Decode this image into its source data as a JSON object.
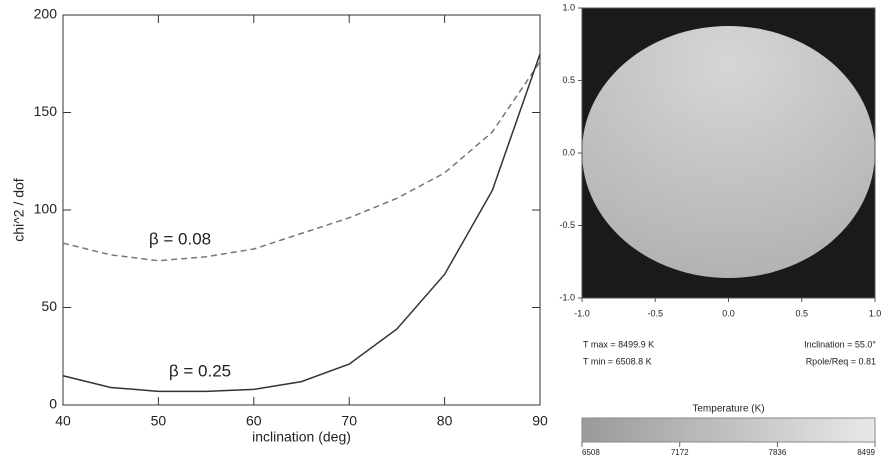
{
  "chart_data": [
    {
      "type": "line",
      "x": [
        40,
        45,
        50,
        55,
        60,
        65,
        70,
        75,
        80,
        85,
        90
      ],
      "series": [
        {
          "color": "#777777",
          "dashed": true,
          "values": [
            83,
            77,
            74,
            76,
            80,
            88,
            96,
            106,
            119,
            140,
            176
          ]
        },
        {
          "color": "#333333",
          "dashed": false,
          "values": [
            15,
            9,
            7,
            7,
            8,
            12,
            21,
            39,
            67,
            110,
            180
          ]
        }
      ],
      "annotations": [
        "β = 0.08",
        "β = 0.25"
      ],
      "xlabel": "inclination (deg)",
      "ylabel": "chi^2 / dof",
      "xlim": [
        40,
        90
      ],
      "xticks": [
        40,
        50,
        60,
        70,
        80,
        90
      ],
      "ylim": [
        0,
        200
      ],
      "yticks": [
        0,
        50,
        100,
        150,
        200
      ]
    },
    {
      "type": "image",
      "xlim": [
        -1,
        1
      ],
      "ylim": [
        -1,
        1
      ],
      "xticks": [
        {
          "value": -1,
          "label": "-1.0"
        },
        {
          "value": -0.5,
          "label": "-0.5"
        },
        {
          "value": 0,
          "label": "0.0"
        },
        0.5,
        {
          "value": 1,
          "label": "1.0"
        }
      ],
      "yticks": [
        {
          "value": -1,
          "label": "-1.0"
        },
        {
          "value": -0.5,
          "label": "-0.5"
        },
        {
          "value": 0,
          "label": "0.0"
        },
        0.5,
        {
          "value": 1,
          "label": "1.0"
        }
      ],
      "info": [
        "T max = 8499.9 K",
        "T min = 6508.8 K",
        "Inclination = 55.0°",
        "Rpole/Req = 0.81"
      ],
      "colorbar": {
        "label": "Temperature (K)",
        "lim": [
          6508,
          8499
        ],
        "ticks": [
          6508,
          7172,
          7836,
          8499
        ]
      }
    }
  ]
}
